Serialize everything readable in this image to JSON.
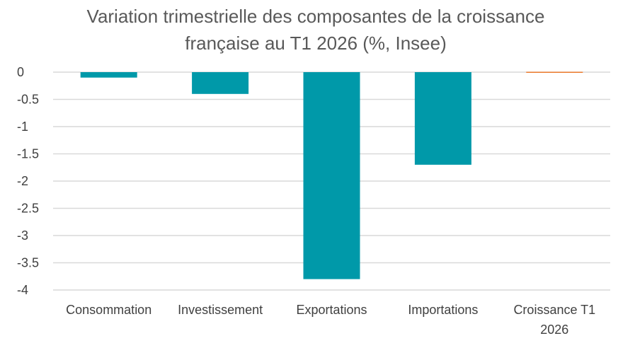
{
  "chart_data": {
    "type": "bar",
    "title_lines": [
      "Variation trimestrielle des composantes de la croissance",
      "française au T1 2026 (%, Insee)"
    ],
    "categories": [
      [
        "Consommation"
      ],
      [
        "Investissement"
      ],
      [
        "Exportations"
      ],
      [
        "Importations"
      ],
      [
        "Croissance T1",
        "2026"
      ]
    ],
    "values": [
      -0.1,
      -0.4,
      -3.8,
      -1.7,
      0.0
    ],
    "bar_colors": [
      "#0099a9",
      "#0099a9",
      "#0099a9",
      "#0099a9",
      "#ed7d31"
    ],
    "ylim": [
      -4,
      0
    ],
    "yticks": [
      0,
      -0.5,
      -1,
      -1.5,
      -2,
      -2.5,
      -3,
      -3.5,
      -4
    ],
    "ytick_labels": [
      "0",
      "-0.5",
      "-1",
      "-1.5",
      "-2",
      "-2.5",
      "-3",
      "-3.5",
      "-4"
    ],
    "xlabel": "",
    "ylabel": "",
    "grid": true,
    "legend": "none"
  }
}
